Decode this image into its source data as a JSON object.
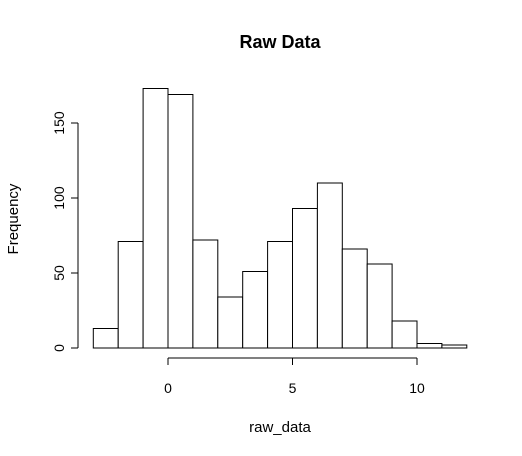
{
  "chart_data": {
    "type": "bar",
    "subtype": "histogram",
    "title": "Raw Data",
    "xlabel": "raw_data",
    "ylabel": "Frequency",
    "bin_edges": [
      -3,
      -2,
      -1,
      0,
      1,
      2,
      3,
      4,
      5,
      6,
      7,
      8,
      9,
      10,
      11,
      12
    ],
    "values": [
      13,
      71,
      173,
      169,
      72,
      34,
      51,
      71,
      93,
      110,
      66,
      56,
      18,
      3,
      2
    ],
    "xlim": [
      -3,
      12
    ],
    "ylim": [
      0,
      180
    ],
    "x_ticks": [
      0,
      5,
      10
    ],
    "x_tick_labels": [
      "0",
      "5",
      "10"
    ],
    "y_ticks": [
      0,
      50,
      100,
      150
    ],
    "y_tick_labels": [
      "0",
      "50",
      "100",
      "150"
    ],
    "bar_fill": "#ffffff",
    "bar_stroke": "#000000",
    "grid": false,
    "legend": "none"
  }
}
